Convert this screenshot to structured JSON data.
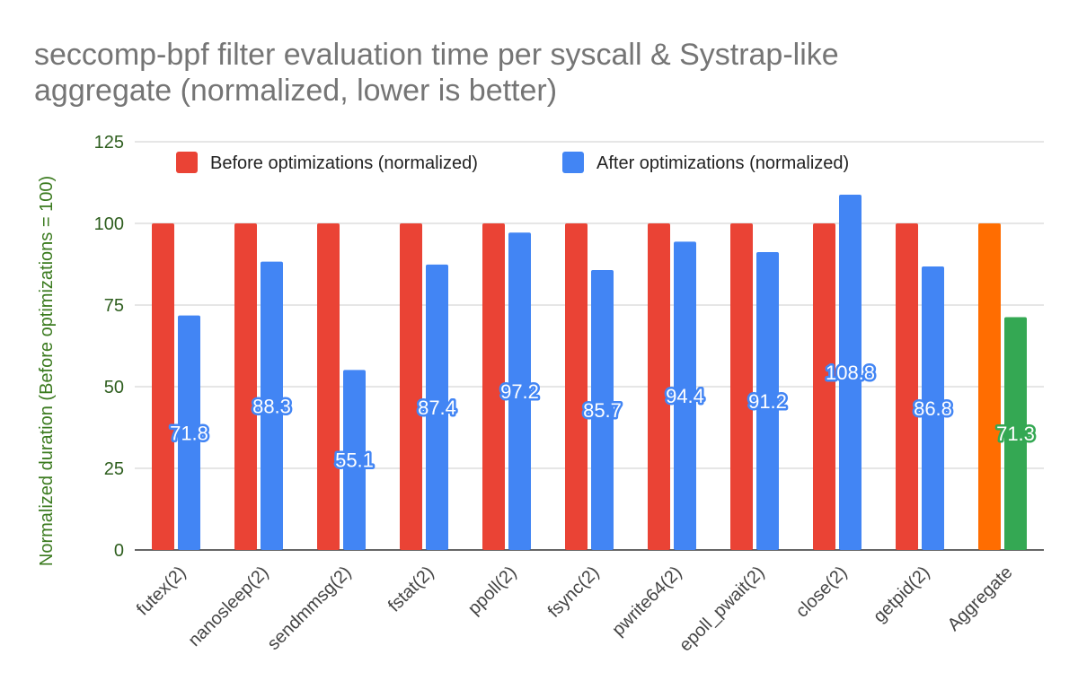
{
  "chart_data": {
    "type": "bar",
    "title_lines": [
      "seccomp-bpf filter evaluation time per syscall & Systrap-like",
      "aggregate (normalized, lower is better)"
    ],
    "ylabel": "Normalized duration (Before optimizations = 100)",
    "xlabel": "",
    "ylim": [
      0,
      125
    ],
    "yticks": [
      0,
      25,
      50,
      75,
      100,
      125
    ],
    "grid": true,
    "legend_position": "top",
    "categories": [
      "futex(2)",
      "nanosleep(2)",
      "sendmmsg(2)",
      "fstat(2)",
      "ppoll(2)",
      "fsync(2)",
      "pwrite64(2)",
      "epoll_pwait(2)",
      "close(2)",
      "getpid(2)",
      "Aggregate"
    ],
    "series": [
      {
        "name": "Before optimizations (normalized)",
        "color": "#ea4335",
        "values": [
          100,
          100,
          100,
          100,
          100,
          100,
          100,
          100,
          100,
          100,
          100
        ],
        "point_colors": [
          "#ea4335",
          "#ea4335",
          "#ea4335",
          "#ea4335",
          "#ea4335",
          "#ea4335",
          "#ea4335",
          "#ea4335",
          "#ea4335",
          "#ea4335",
          "#ff6d01"
        ],
        "show_labels": false
      },
      {
        "name": "After optimizations (normalized)",
        "color": "#4285f4",
        "values": [
          71.8,
          88.3,
          55.1,
          87.4,
          97.2,
          85.7,
          94.4,
          91.2,
          108.8,
          86.8,
          71.3
        ],
        "point_colors": [
          "#4285f4",
          "#4285f4",
          "#4285f4",
          "#4285f4",
          "#4285f4",
          "#4285f4",
          "#4285f4",
          "#4285f4",
          "#4285f4",
          "#4285f4",
          "#34a853"
        ],
        "show_labels": true,
        "data_labels": [
          "71.8",
          "88.3",
          "55.1",
          "87.4",
          "97.2",
          "85.7",
          "94.4",
          "91.2",
          "108.8",
          "86.8",
          "71.3"
        ]
      }
    ]
  }
}
